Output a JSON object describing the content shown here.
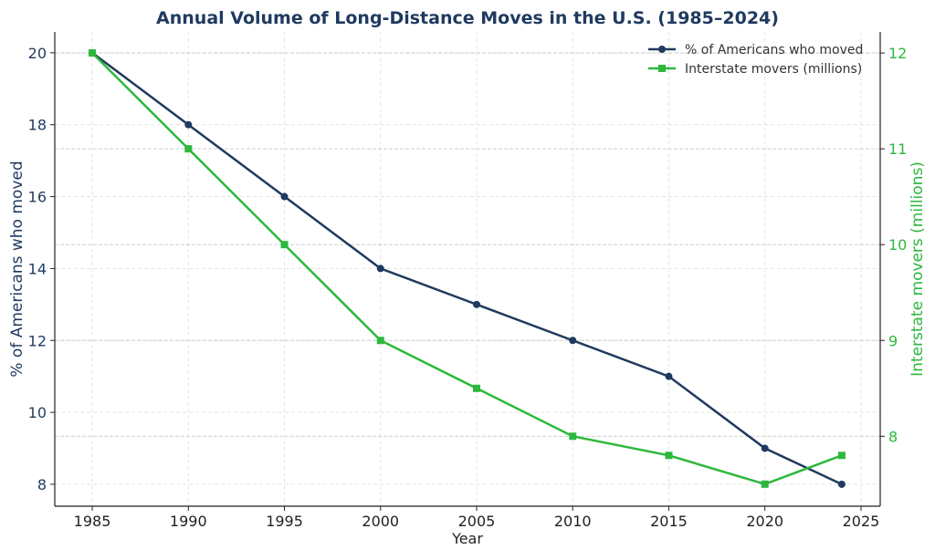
{
  "chart_data": {
    "type": "line",
    "title": "Annual Volume of Long-Distance Moves in the U.S. (1985–2024)",
    "xlabel": "Year",
    "ylabel_left": "% of Americans who moved",
    "ylabel_right": "Interstate movers (millions)",
    "x": [
      1985,
      1990,
      1995,
      2000,
      2005,
      2010,
      2015,
      2020,
      2024
    ],
    "xlim": [
      1983.05,
      2026
    ],
    "xticks": [
      1985,
      1990,
      1995,
      2000,
      2005,
      2010,
      2015,
      2020,
      2025
    ],
    "ylim_left": [
      7.39,
      20.58
    ],
    "yticks_left": [
      8,
      10,
      12,
      14,
      16,
      18,
      20
    ],
    "ylim_right": [
      7.27,
      12.22
    ],
    "yticks_right": [
      8,
      9,
      10,
      11,
      12
    ],
    "grid": true,
    "legend": "top-right",
    "series": [
      {
        "name": "% of Americans who moved",
        "axis": "left",
        "color": "#1f3a5f",
        "marker": "circle",
        "values": [
          20,
          18,
          16,
          14,
          13,
          12,
          11,
          9,
          8
        ]
      },
      {
        "name": "Interstate movers (millions)",
        "axis": "right",
        "color": "#2db83d",
        "marker": "square",
        "values": [
          12,
          11,
          10,
          9,
          8.5,
          8,
          7.8,
          7.5,
          7.8
        ]
      }
    ]
  }
}
